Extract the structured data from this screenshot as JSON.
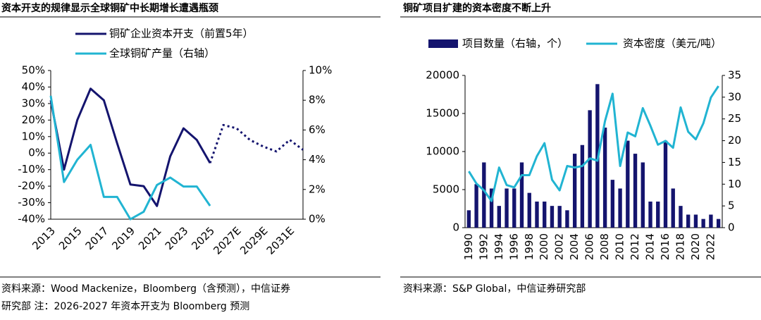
{
  "chart_data": [
    {
      "type": "line",
      "title": "资本开支的规律显示全球铜矿中长期增长遭遇瓶颈",
      "categories": [
        "2013",
        null,
        "2015",
        null,
        "2017",
        null,
        "2019",
        null,
        "2021",
        null,
        "2023",
        null,
        "2025",
        null,
        "2027E",
        null,
        "2029E",
        null,
        "2031E",
        null
      ],
      "series": [
        {
          "name": "铜矿企业资本开支（前置5年）",
          "color": "#14146e",
          "values": [
            32,
            -10,
            20,
            39,
            32,
            6,
            -19,
            -20,
            -32,
            -2,
            15,
            8,
            -6,
            null,
            null,
            null,
            null,
            null,
            null,
            null
          ]
        },
        {
          "color": "#14146e",
          "dash": true,
          "values": [
            null,
            null,
            null,
            null,
            null,
            null,
            null,
            null,
            null,
            null,
            null,
            null,
            -6,
            17,
            15,
            8,
            4,
            1,
            8,
            2
          ]
        },
        {
          "name": "全球铜矿产量（右轴）",
          "color": "#21b4d2",
          "axis": "y2",
          "values": [
            8.3,
            2.5,
            4,
            5,
            1.5,
            1.5,
            0,
            0.5,
            2.3,
            2.8,
            2.2,
            2.2,
            0.9,
            null,
            null,
            null,
            null,
            null,
            null,
            null
          ]
        }
      ],
      "ylim": [
        -40,
        50
      ],
      "yticks": [
        {
          "value": -40,
          "label": "-40%"
        },
        {
          "value": -30,
          "label": "-30%"
        },
        {
          "value": -20,
          "label": "-20%"
        },
        {
          "value": -10,
          "label": "-10%"
        },
        {
          "value": 0,
          "label": "0%"
        },
        {
          "value": 10,
          "label": "10%"
        },
        {
          "value": 20,
          "label": "20%"
        },
        {
          "value": 30,
          "label": "30%"
        },
        {
          "value": 40,
          "label": "40%"
        },
        {
          "value": 50,
          "label": "50%"
        }
      ],
      "y2lim": [
        0,
        10
      ],
      "y2ticks": [
        {
          "value": 0,
          "label": "0%"
        },
        {
          "value": 2,
          "label": "2%"
        },
        {
          "value": 4,
          "label": "4%"
        },
        {
          "value": 6,
          "label": "6%"
        },
        {
          "value": 8,
          "label": "8%"
        },
        {
          "value": 10,
          "label": "10%"
        }
      ],
      "source": [
        "资料来源：Wood Mackenize，Bloomberg（含预测），中信证券",
        "研究部   注：2026-2027 年资本开支为 Bloomberg 预测"
      ]
    },
    {
      "type": "bar_line",
      "title": "铜矿项目扩建的资本密度不断上升",
      "categories": [
        "1990",
        null,
        "1992",
        null,
        "1994",
        null,
        "1996",
        null,
        "1998",
        null,
        "2000",
        null,
        "2002",
        null,
        "2004",
        null,
        "2006",
        null,
        "2008",
        null,
        "2010",
        null,
        "2012",
        null,
        "2014",
        null,
        "2016",
        null,
        "2018",
        null,
        "2020",
        null,
        "2022",
        null
      ],
      "series": [
        {
          "name": "项目数量（右轴，个）",
          "kind": "bar",
          "axis": "y2",
          "color": "#14146e",
          "values": [
            4,
            10,
            15,
            9,
            5,
            9,
            9,
            15,
            8,
            6,
            6,
            5,
            5,
            4,
            17,
            19,
            27,
            33,
            23,
            11,
            9,
            20,
            17,
            15,
            6,
            6,
            20,
            9,
            5,
            3,
            3,
            2,
            3,
            2
          ]
        },
        {
          "name": "资本密度（美元/吨）",
          "kind": "line",
          "color": "#21b4d2",
          "values": [
            7400,
            5800,
            4900,
            3500,
            7900,
            5600,
            5300,
            6900,
            6900,
            9400,
            11100,
            6300,
            4900,
            8100,
            7900,
            8100,
            9100,
            8800,
            14000,
            17600,
            8100,
            12500,
            12000,
            15700,
            13400,
            10900,
            11400,
            10500,
            15800,
            12600,
            11600,
            13700,
            17100,
            18600
          ]
        }
      ],
      "ylim": [
        0,
        20000
      ],
      "yticks": [
        0,
        5000,
        10000,
        15000,
        20000
      ],
      "y2lim": [
        0,
        35
      ],
      "y2ticks": [
        0,
        5,
        10,
        15,
        20,
        25,
        30,
        35
      ],
      "source": [
        "资料来源：S&P Global，中信证券研究部"
      ]
    }
  ]
}
